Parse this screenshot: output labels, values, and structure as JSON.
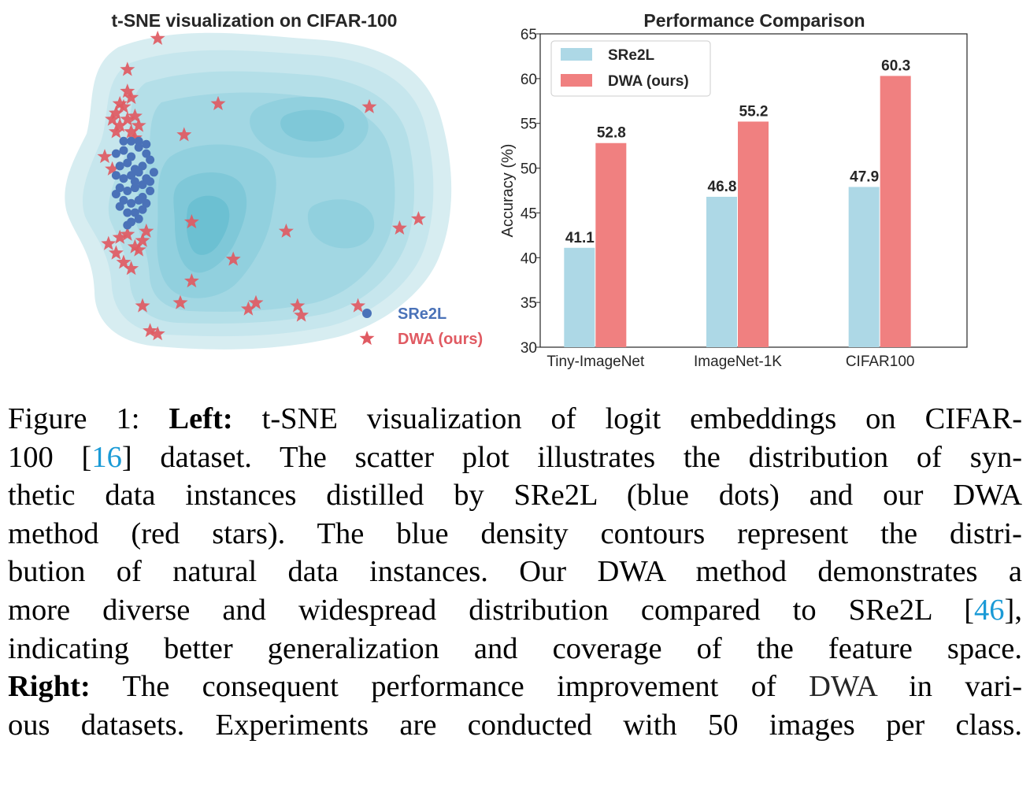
{
  "figure": {
    "left_panel": {
      "title": "t-SNE visualization on CIFAR-100",
      "legend": [
        {
          "label": "SRe2L",
          "color": "#4a72b8",
          "marker": "dot"
        },
        {
          "label": "DWA (ours)",
          "color": "#e05a62",
          "marker": "star"
        }
      ]
    },
    "right_panel": {
      "title": "Performance Comparison",
      "ylabel": "Accuracy (%)"
    }
  },
  "chart_data": [
    {
      "type": "bar",
      "title": "Performance Comparison",
      "xlabel": "",
      "ylabel": "Accuracy (%)",
      "ylim": [
        30,
        65
      ],
      "yticks": [
        30,
        35,
        40,
        45,
        50,
        55,
        60,
        65
      ],
      "categories": [
        "Tiny-ImageNet",
        "ImageNet-1K",
        "CIFAR100"
      ],
      "series": [
        {
          "name": "SRe2L",
          "color": "#add8e6",
          "values": [
            41.1,
            46.8,
            47.9
          ]
        },
        {
          "name": "DWA (ours)",
          "color": "#f08080",
          "values": [
            52.8,
            55.2,
            60.3
          ]
        }
      ],
      "legend": "top-left",
      "grid": false
    },
    {
      "type": "scatter",
      "title": "t-SNE visualization on CIFAR-100",
      "xlabel": "",
      "ylabel": "",
      "axes_visible": false,
      "legend": "bottom-right",
      "series": [
        {
          "name": "SRe2L",
          "marker": "dot",
          "color": "#4a72b8",
          "x": [
            0.13,
            0.15,
            0.17,
            0.19,
            0.21,
            0.14,
            0.16,
            0.18,
            0.2,
            0.22,
            0.13,
            0.15,
            0.17,
            0.19,
            0.21,
            0.23,
            0.14,
            0.16,
            0.18,
            0.2,
            0.22,
            0.15,
            0.17,
            0.19,
            0.21,
            0.16,
            0.18,
            0.2,
            0.14,
            0.19,
            0.17,
            0.21,
            0.15,
            0.18,
            0.2,
            0.16,
            0.22,
            0.13,
            0.19,
            0.17
          ],
          "y": [
            0.62,
            0.63,
            0.61,
            0.64,
            0.62,
            0.58,
            0.59,
            0.57,
            0.58,
            0.6,
            0.55,
            0.54,
            0.55,
            0.56,
            0.54,
            0.56,
            0.51,
            0.5,
            0.51,
            0.52,
            0.5,
            0.47,
            0.46,
            0.47,
            0.46,
            0.43,
            0.43,
            0.44,
            0.45,
            0.66,
            0.66,
            0.65,
            0.66,
            0.53,
            0.48,
            0.39,
            0.53,
            0.49,
            0.41,
            0.4
          ]
        },
        {
          "name": "DWA (ours)",
          "marker": "star",
          "color": "#e05a62",
          "x": [
            0.24,
            0.16,
            0.14,
            0.16,
            0.17,
            0.15,
            0.13,
            0.12,
            0.14,
            0.18,
            0.16,
            0.13,
            0.17,
            0.19,
            0.18,
            0.1,
            0.12,
            0.31,
            0.4,
            0.8,
            0.33,
            0.58,
            0.93,
            0.88,
            0.44,
            0.3,
            0.5,
            0.33,
            0.2,
            0.48,
            0.22,
            0.24,
            0.62,
            0.77,
            0.61,
            0.11,
            0.13,
            0.16,
            0.18,
            0.2,
            0.14,
            0.15,
            0.19,
            0.17,
            0.21
          ],
          "y": [
            0.99,
            0.89,
            0.78,
            0.82,
            0.8,
            0.77,
            0.75,
            0.73,
            0.71,
            0.74,
            0.73,
            0.69,
            0.69,
            0.71,
            0.67,
            0.61,
            0.57,
            0.68,
            0.78,
            0.77,
            0.4,
            0.37,
            0.41,
            0.38,
            0.28,
            0.14,
            0.14,
            0.21,
            0.13,
            0.12,
            0.05,
            0.04,
            0.1,
            0.13,
            0.13,
            0.33,
            0.3,
            0.36,
            0.32,
            0.34,
            0.35,
            0.27,
            0.31,
            0.25,
            0.37
          ]
        }
      ]
    }
  ],
  "caption": {
    "figure_label": "Figure 1:",
    "left_label": "Left:",
    "right_label": "Right:",
    "lines": [
      "t-SNE visualization of logit embeddings on CIFAR-",
      "dataset. The scatter plot illustrates the distribution of syn-",
      "thetic data instances distilled by SRe2L (blue dots) and our DWA",
      "method (red stars). The blue density contours represent the distri-",
      "bution of natural data instances. Our DWA method demonstrates a",
      "more diverse and widespread distribution compared to SRe2L",
      "indicating better generalization and coverage of the feature space.",
      "The consequent performance improvement of",
      "in vari-",
      "ous datasets. Experiments are conducted with 50 images per class."
    ],
    "line2_prefix": "100 ",
    "cite_16": "16",
    "cite_46": "46",
    "dwa_word": "DWA"
  }
}
